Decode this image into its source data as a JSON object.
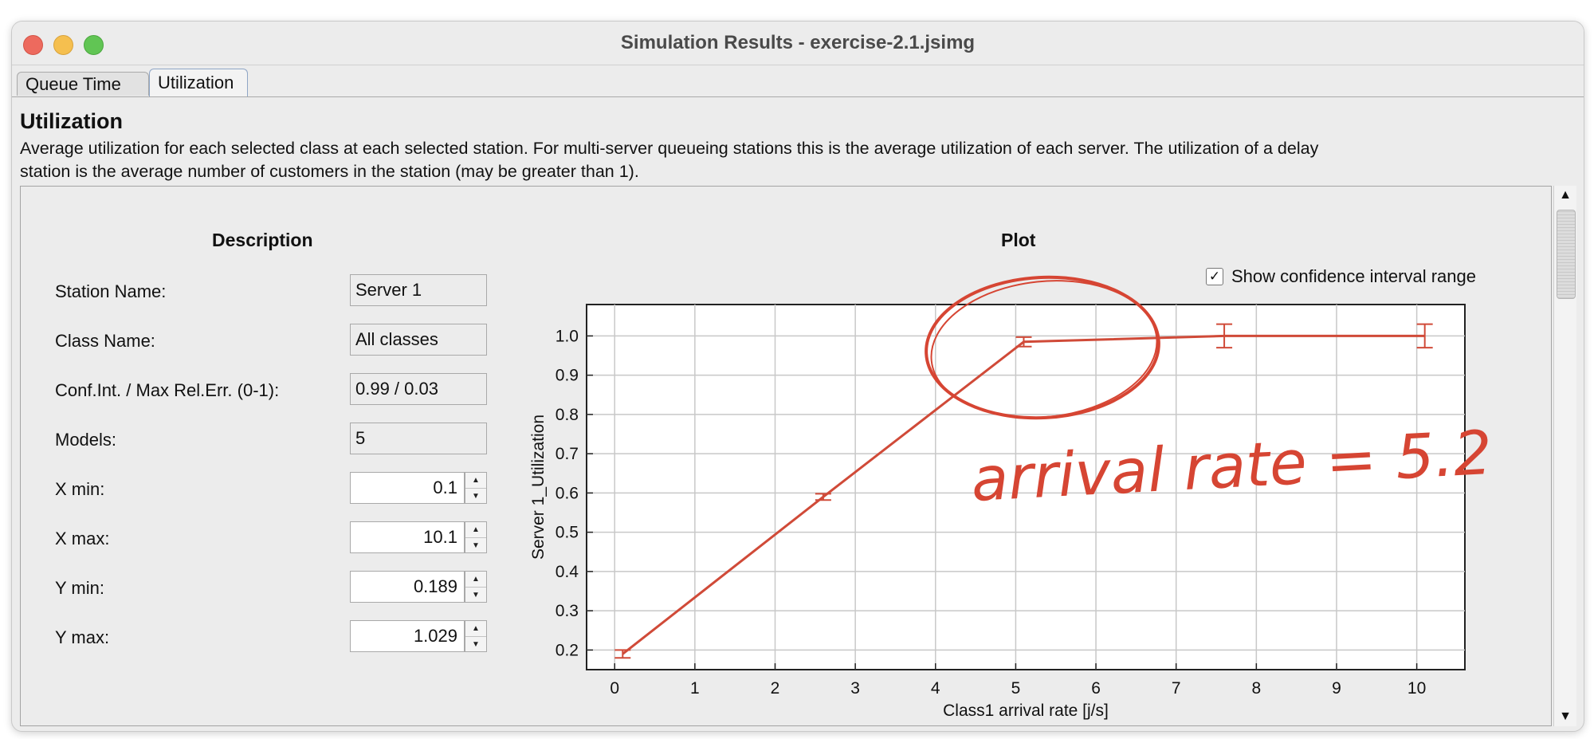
{
  "window": {
    "title": "Simulation Results - exercise-2.1.jsimg"
  },
  "tabs": [
    {
      "label": "Queue Time"
    },
    {
      "label": "Utilization"
    }
  ],
  "header": {
    "title": "Utilization",
    "description_line1": "Average utilization for each selected class at each selected station. For multi-server queueing stations this is the average utilization of each server. The utilization of a delay",
    "description_line2": "station is the average number of customers in the station (may be greater than 1)."
  },
  "description_panel": {
    "title": "Description",
    "station_name": {
      "label": "Station Name:",
      "value": "Server 1"
    },
    "class_name": {
      "label": "Class Name:",
      "value": "All classes"
    },
    "conf_int": {
      "label": "Conf.Int. / Max Rel.Err. (0-1):",
      "value": "0.99 / 0.03"
    },
    "models": {
      "label": "Models:",
      "value": "5"
    },
    "x_min": {
      "label": "X min:",
      "value": "0.1"
    },
    "x_max": {
      "label": "X max:",
      "value": "10.1"
    },
    "y_min": {
      "label": "Y min:",
      "value": "0.189"
    },
    "y_max": {
      "label": "Y max:",
      "value": "1.029"
    }
  },
  "plot_panel": {
    "title": "Plot",
    "show_ci_label": "Show confidence interval range",
    "show_ci_checked": true
  },
  "annotation": {
    "text": "arrival rate = 5.2",
    "color": "#d64533"
  },
  "chart_data": {
    "type": "line",
    "xlabel": "Class1 arrival rate [j/s]",
    "ylabel": "Server 1_Utilization",
    "xlim": [
      -0.35,
      10.6
    ],
    "ylim": [
      0.15,
      1.08
    ],
    "x_ticks": [
      "0",
      "1",
      "2",
      "3",
      "4",
      "5",
      "6",
      "7",
      "8",
      "9",
      "10"
    ],
    "y_ticks": [
      "0.2",
      "0.3",
      "0.4",
      "0.5",
      "0.6",
      "0.7",
      "0.8",
      "0.9",
      "1.0"
    ],
    "grid": true,
    "series": [
      {
        "color": "#d04a38",
        "points": [
          {
            "x": 0.1,
            "y": 0.19,
            "err": 0.01
          },
          {
            "x": 2.6,
            "y": 0.59,
            "err": 0.008
          },
          {
            "x": 5.1,
            "y": 0.985,
            "err": 0.012
          },
          {
            "x": 7.6,
            "y": 1.0,
            "err": 0.03
          },
          {
            "x": 10.1,
            "y": 1.0,
            "err": 0.03
          }
        ]
      }
    ]
  }
}
